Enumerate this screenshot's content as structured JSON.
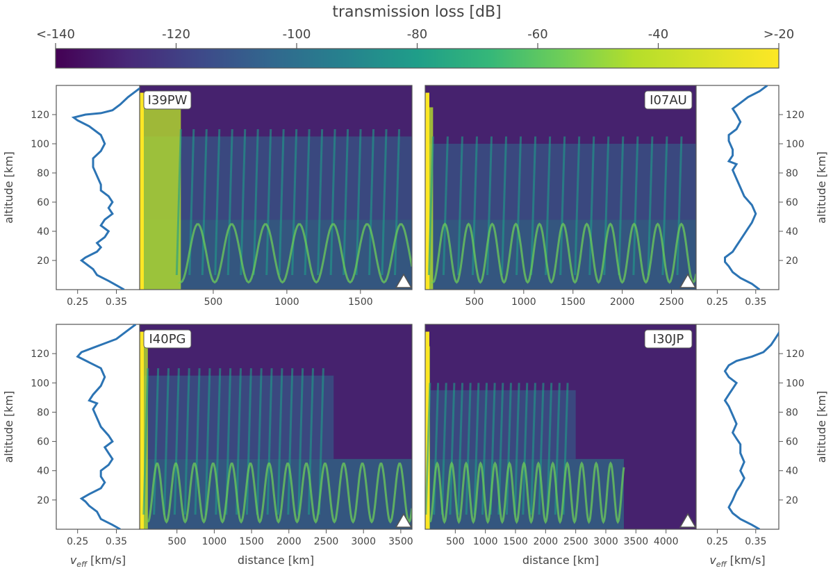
{
  "chart_data": {
    "type": "heatmap",
    "colorbar": {
      "label": "transmission loss [dB]",
      "ticks": [
        "<-140",
        "-120",
        "-100",
        "-80",
        "-60",
        "-40",
        ">-20"
      ],
      "range": [
        -140,
        -20
      ],
      "colormap": "viridis"
    },
    "panels": [
      {
        "station": "I39PW",
        "distance_max": 1850,
        "distance_ticks": [
          500,
          1000,
          1500
        ],
        "altitude_ticks": [
          20,
          40,
          60,
          80,
          100,
          120
        ],
        "ylabel": "altitude [km]",
        "xlabel": "",
        "veff_ticks": [
          "0.25",
          "0.35"
        ],
        "veff_xlabel": "",
        "profile": [
          [
            0.37,
            0
          ],
          [
            0.35,
            3
          ],
          [
            0.33,
            6
          ],
          [
            0.3,
            10
          ],
          [
            0.29,
            14
          ],
          [
            0.27,
            18
          ],
          [
            0.26,
            20
          ],
          [
            0.27,
            22
          ],
          [
            0.3,
            26
          ],
          [
            0.31,
            29
          ],
          [
            0.3,
            32
          ],
          [
            0.32,
            36
          ],
          [
            0.33,
            40
          ],
          [
            0.31,
            44
          ],
          [
            0.32,
            48
          ],
          [
            0.34,
            52
          ],
          [
            0.33,
            56
          ],
          [
            0.34,
            60
          ],
          [
            0.33,
            64
          ],
          [
            0.31,
            68
          ],
          [
            0.31,
            72
          ],
          [
            0.3,
            78
          ],
          [
            0.29,
            84
          ],
          [
            0.29,
            90
          ],
          [
            0.31,
            95
          ],
          [
            0.32,
            100
          ],
          [
            0.31,
            106
          ],
          [
            0.28,
            112
          ],
          [
            0.25,
            116
          ],
          [
            0.24,
            118
          ],
          [
            0.27,
            120
          ],
          [
            0.31,
            121
          ],
          [
            0.34,
            123
          ],
          [
            0.36,
            127
          ],
          [
            0.38,
            132
          ],
          [
            0.4,
            136
          ],
          [
            0.42,
            140
          ]
        ]
      },
      {
        "station": "I07AU",
        "distance_max": 2750,
        "distance_ticks": [
          500,
          1000,
          1500,
          2000,
          2500
        ],
        "altitude_ticks": [
          20,
          40,
          60,
          80,
          100,
          120
        ],
        "ylabel": "altitude [km]",
        "xlabel": "",
        "veff_ticks": [
          "0.25",
          "0.35"
        ],
        "veff_xlabel": "",
        "profile": [
          [
            0.36,
            0
          ],
          [
            0.34,
            4
          ],
          [
            0.31,
            8
          ],
          [
            0.29,
            12
          ],
          [
            0.28,
            16
          ],
          [
            0.27,
            19
          ],
          [
            0.27,
            22
          ],
          [
            0.29,
            26
          ],
          [
            0.3,
            30
          ],
          [
            0.31,
            34
          ],
          [
            0.32,
            38
          ],
          [
            0.33,
            42
          ],
          [
            0.34,
            46
          ],
          [
            0.35,
            52
          ],
          [
            0.34,
            58
          ],
          [
            0.32,
            64
          ],
          [
            0.31,
            70
          ],
          [
            0.3,
            76
          ],
          [
            0.29,
            82
          ],
          [
            0.3,
            86
          ],
          [
            0.28,
            88
          ],
          [
            0.29,
            92
          ],
          [
            0.29,
            96
          ],
          [
            0.28,
            102
          ],
          [
            0.28,
            106
          ],
          [
            0.3,
            110
          ],
          [
            0.31,
            115
          ],
          [
            0.3,
            120
          ],
          [
            0.29,
            124
          ],
          [
            0.31,
            128
          ],
          [
            0.33,
            132
          ],
          [
            0.36,
            136
          ],
          [
            0.38,
            140
          ]
        ]
      },
      {
        "station": "I40PG",
        "distance_max": 3650,
        "distance_ticks": [
          500,
          1000,
          1500,
          2000,
          2500,
          3000,
          3500
        ],
        "altitude_ticks": [
          20,
          40,
          60,
          80,
          100,
          120
        ],
        "ylabel": "altitude [km]",
        "xlabel": "distance [km]",
        "veff_ticks": [
          "0.25",
          "0.35"
        ],
        "veff_xlabel": "v_eff [km/s]",
        "profile": [
          [
            0.36,
            0
          ],
          [
            0.34,
            3
          ],
          [
            0.31,
            7
          ],
          [
            0.3,
            12
          ],
          [
            0.28,
            16
          ],
          [
            0.27,
            19
          ],
          [
            0.26,
            21
          ],
          [
            0.28,
            24
          ],
          [
            0.31,
            28
          ],
          [
            0.32,
            32
          ],
          [
            0.31,
            36
          ],
          [
            0.31,
            40
          ],
          [
            0.33,
            44
          ],
          [
            0.34,
            48
          ],
          [
            0.33,
            52
          ],
          [
            0.32,
            56
          ],
          [
            0.34,
            60
          ],
          [
            0.33,
            64
          ],
          [
            0.31,
            70
          ],
          [
            0.3,
            76
          ],
          [
            0.29,
            82
          ],
          [
            0.3,
            86
          ],
          [
            0.28,
            88
          ],
          [
            0.29,
            92
          ],
          [
            0.31,
            98
          ],
          [
            0.32,
            104
          ],
          [
            0.31,
            110
          ],
          [
            0.28,
            114
          ],
          [
            0.25,
            118
          ],
          [
            0.26,
            121
          ],
          [
            0.29,
            124
          ],
          [
            0.32,
            127
          ],
          [
            0.35,
            130
          ],
          [
            0.37,
            134
          ],
          [
            0.39,
            138
          ],
          [
            0.4,
            140
          ]
        ]
      },
      {
        "station": "I30JP",
        "distance_max": 4500,
        "distance_ticks": [
          500,
          1000,
          1500,
          2000,
          2500,
          3000,
          3500,
          4000
        ],
        "altitude_ticks": [
          20,
          40,
          60,
          80,
          100,
          120
        ],
        "ylabel": "altitude [km]",
        "xlabel": "distance [km]",
        "veff_ticks": [
          "0.25",
          "0.35"
        ],
        "veff_xlabel": "v_eff [km/s]",
        "profile": [
          [
            0.36,
            0
          ],
          [
            0.34,
            3
          ],
          [
            0.31,
            7
          ],
          [
            0.29,
            11
          ],
          [
            0.28,
            15
          ],
          [
            0.29,
            20
          ],
          [
            0.3,
            26
          ],
          [
            0.31,
            30
          ],
          [
            0.32,
            35
          ],
          [
            0.31,
            40
          ],
          [
            0.32,
            46
          ],
          [
            0.31,
            52
          ],
          [
            0.31,
            58
          ],
          [
            0.3,
            62
          ],
          [
            0.29,
            66
          ],
          [
            0.3,
            72
          ],
          [
            0.29,
            78
          ],
          [
            0.28,
            84
          ],
          [
            0.27,
            88
          ],
          [
            0.28,
            92
          ],
          [
            0.29,
            96
          ],
          [
            0.3,
            100
          ],
          [
            0.28,
            104
          ],
          [
            0.27,
            108
          ],
          [
            0.28,
            112
          ],
          [
            0.3,
            115
          ],
          [
            0.34,
            118
          ],
          [
            0.37,
            121
          ],
          [
            0.39,
            126
          ],
          [
            0.4,
            130
          ],
          [
            0.41,
            134
          ],
          [
            0.42,
            140
          ]
        ]
      }
    ]
  }
}
